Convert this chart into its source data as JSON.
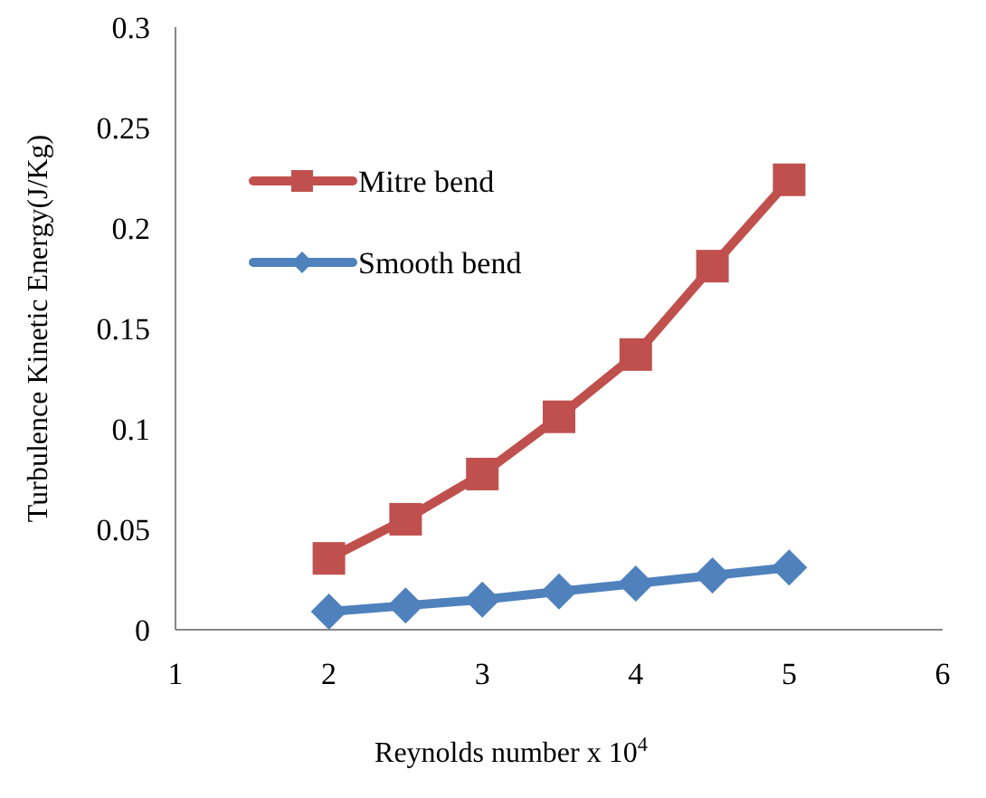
{
  "chart_data": {
    "type": "line",
    "xlabel": "Reynolds number x 10$^{4}$",
    "ylabel": "Turbulence  Kinetic Energy(J/Kg)",
    "x": [
      2,
      2.5,
      3,
      3.5,
      4,
      4.5,
      5
    ],
    "series": [
      {
        "name": "Mitre bend",
        "color": "#c0504d",
        "marker": "square",
        "values": [
          0.0355,
          0.055,
          0.0775,
          0.106,
          0.137,
          0.181,
          0.224
        ]
      },
      {
        "name": "Smooth bend",
        "color": "#4f81bd",
        "marker": "diamond",
        "values": [
          0.009,
          0.012,
          0.015,
          0.019,
          0.023,
          0.027,
          0.031
        ]
      }
    ],
    "xlim": [
      1,
      6
    ],
    "xticks": [
      1,
      2,
      3,
      4,
      5,
      6
    ],
    "ylim": [
      0,
      0.3
    ],
    "yticks": [
      0,
      0.05,
      0.1,
      0.15,
      0.2,
      0.25,
      0.3
    ],
    "grid": false,
    "legend": "top left"
  }
}
